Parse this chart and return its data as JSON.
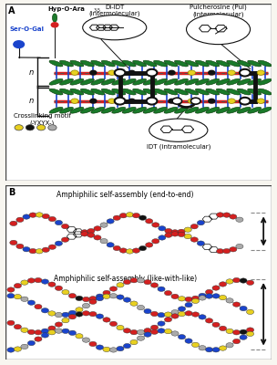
{
  "panel_A_label": "A",
  "panel_B_label": "B",
  "label_ser_o_gal": "Ser-O-Gal",
  "label_hyp": "Hyp-O-Ara",
  "label_hyp_sub": "3-5",
  "label_di_idt": "Di-IDT\n(intermolecular)",
  "label_pul": "Pulcherosine (Pul)\n(intermolecular)",
  "label_idt": "IDT (intramolecular)",
  "label_crosslink": "Crosslinking motif\n(-YXYX-)",
  "label_n1": "n",
  "label_n2": "n",
  "label_end_to_end": "Amphiphilic self-assembly (end-to-end)",
  "label_like_with_like": "Amphiphilic self-assembly (like-with-like)",
  "color_red": "#d42020",
  "color_blue": "#1a44cc",
  "color_green": "#1a7a2a",
  "color_yellow": "#e8d020",
  "color_black": "#111111",
  "color_gray": "#aaaaaa",
  "color_white": "#ffffff",
  "color_panel_bg": "#f8f6f0"
}
